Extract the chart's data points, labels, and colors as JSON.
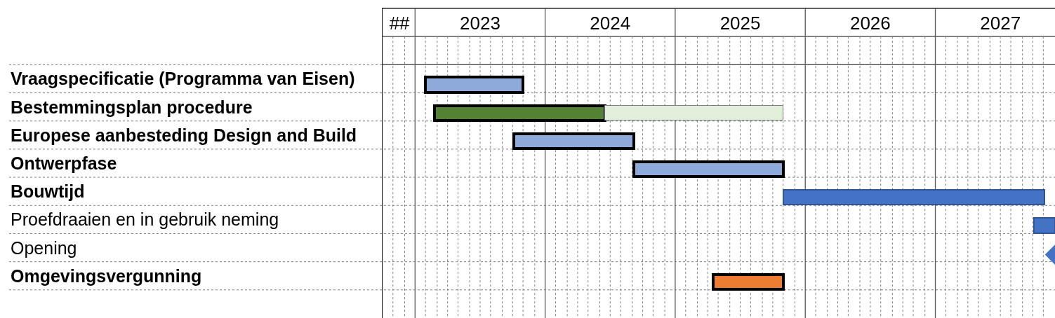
{
  "chart_data": {
    "type": "bar",
    "orientation": "horizontal",
    "grid": true,
    "marker": "diamond",
    "categories": [
      "Vraagspecificatie (Programma van Eisen)",
      "Bestemmingsplan procedure",
      "Europese aanbesteding Design and Build",
      "Ontwerpfase",
      "Bouwtijd",
      "Proefdraaien en in gebruik neming",
      "Opening",
      "Omgevingsvergunning"
    ],
    "series": [
      {
        "colors": [
          "#8eaadb",
          "#548235",
          "#8eaadb",
          "#8eaadb",
          "#4472c4",
          "#4472c4",
          null,
          "#ed7d31"
        ],
        "base": [
          2023.08,
          2023.15,
          2023.76,
          2024.68,
          2025.83,
          2027.76,
          null,
          2025.29
        ],
        "values": [
          0.75,
          1.31,
          0.92,
          1.15,
          2.01,
          0.16,
          null,
          0.54
        ]
      },
      {
        "color": "#e2efda",
        "base": [
          null,
          2024.46,
          null,
          null,
          null,
          null,
          null,
          null
        ],
        "values": [
          null,
          1.37,
          null,
          null,
          null,
          null,
          null,
          null
        ]
      },
      {
        "type": "scatter",
        "color": "#4472c4",
        "values": [
          null,
          null,
          null,
          null,
          null,
          null,
          2027.92,
          null
        ]
      }
    ],
    "xlim": [
      2022.75,
      2027.92
    ],
    "xticks": [
      {
        "value": 2022.88,
        "label": "##"
      },
      {
        "value": 2023.5,
        "label": "2023"
      },
      {
        "value": 2024.5,
        "label": "2024"
      },
      {
        "value": 2025.5,
        "label": "2025"
      },
      {
        "value": 2026.5,
        "label": "2026"
      },
      {
        "value": 2027.5,
        "label": "2027"
      },
      {
        "value": 2022.83,
        "label": null
      },
      {
        "value": 2022.92,
        "label": null
      },
      {
        "value": 2023,
        "label": null
      },
      {
        "value": 2023.08,
        "label": null
      },
      {
        "value": 2023.17,
        "label": null
      },
      {
        "value": 2023.25,
        "label": null
      },
      {
        "value": 2023.33,
        "label": null
      },
      {
        "value": 2023.42,
        "label": null
      },
      {
        "value": 2023.5,
        "label": null
      },
      {
        "value": 2023.58,
        "label": null
      },
      {
        "value": 2023.67,
        "label": null
      },
      {
        "value": 2023.75,
        "label": null
      },
      {
        "value": 2023.83,
        "label": null
      },
      {
        "value": 2023.92,
        "label": null
      },
      {
        "value": 2024,
        "label": null
      },
      {
        "value": 2024.08,
        "label": null
      },
      {
        "value": 2024.17,
        "label": null
      },
      {
        "value": 2024.25,
        "label": null
      },
      {
        "value": 2024.33,
        "label": null
      },
      {
        "value": 2024.42,
        "label": null
      },
      {
        "value": 2024.5,
        "label": null
      },
      {
        "value": 2024.58,
        "label": null
      },
      {
        "value": 2024.67,
        "label": null
      },
      {
        "value": 2024.75,
        "label": null
      },
      {
        "value": 2024.83,
        "label": null
      },
      {
        "value": 2024.92,
        "label": null
      },
      {
        "value": 2025,
        "label": null
      },
      {
        "value": 2025.08,
        "label": null
      },
      {
        "value": 2025.17,
        "label": null
      },
      {
        "value": 2025.25,
        "label": null
      },
      {
        "value": 2025.33,
        "label": null
      },
      {
        "value": 2025.42,
        "label": null
      },
      {
        "value": 2025.5,
        "label": null
      },
      {
        "value": 2025.58,
        "label": null
      },
      {
        "value": 2025.67,
        "label": null
      },
      {
        "value": 2025.75,
        "label": null
      },
      {
        "value": 2025.83,
        "label": null
      },
      {
        "value": 2025.92,
        "label": null
      },
      {
        "value": 2026,
        "label": null
      },
      {
        "value": 2026.08,
        "label": null
      },
      {
        "value": 2026.17,
        "label": null
      },
      {
        "value": 2026.25,
        "label": null
      },
      {
        "value": 2026.33,
        "label": null
      },
      {
        "value": 2026.42,
        "label": null
      },
      {
        "value": 2026.5,
        "label": null
      },
      {
        "value": 2026.58,
        "label": null
      },
      {
        "value": 2026.67,
        "label": null
      },
      {
        "value": 2026.75,
        "label": null
      },
      {
        "value": 2026.83,
        "label": null
      },
      {
        "value": 2026.92,
        "label": null
      },
      {
        "value": 2027,
        "label": null
      },
      {
        "value": 2027.08,
        "label": null
      },
      {
        "value": 2027.17,
        "label": null
      },
      {
        "value": 2027.25,
        "label": null
      },
      {
        "value": 2027.33,
        "label": null
      },
      {
        "value": 2027.42,
        "label": null
      },
      {
        "value": 2027.5,
        "label": null
      },
      {
        "value": 2027.58,
        "label": null
      },
      {
        "value": 2027.67,
        "label": null
      },
      {
        "value": 2027.75,
        "label": null
      },
      {
        "value": 2027.83,
        "label": null
      }
    ]
  }
}
